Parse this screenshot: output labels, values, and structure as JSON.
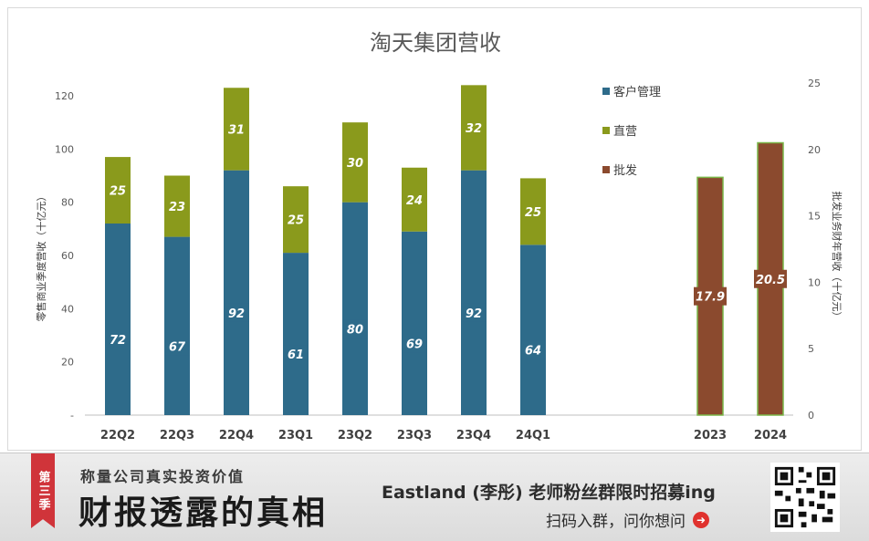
{
  "chart_data": {
    "type": "bar",
    "title": "淘天集团营收",
    "ylabel_left": "零售商业季度营收（十亿元）",
    "ylabel_right": "批发业务财年营收（十亿元）",
    "left_axis": {
      "range": [
        0,
        130
      ],
      "ticks": [
        "-",
        "20",
        "40",
        "60",
        "80",
        "100",
        "120"
      ]
    },
    "right_axis": {
      "range": [
        0,
        25
      ],
      "ticks": [
        "0",
        "5",
        "10",
        "15",
        "20",
        "25"
      ]
    },
    "quarterly": {
      "categories": [
        "22Q2",
        "22Q3",
        "22Q4",
        "23Q1",
        "23Q2",
        "23Q3",
        "23Q4",
        "24Q1"
      ],
      "series": [
        {
          "name": "客户管理",
          "color": "#2e6b8a",
          "values": [
            72,
            67,
            92,
            61,
            80,
            69,
            92,
            64
          ],
          "labels": [
            "72",
            "67",
            "92",
            "61",
            "80",
            "69",
            "92",
            "64"
          ]
        },
        {
          "name": "直营",
          "color": "#8a9a1c",
          "values": [
            25,
            23,
            31,
            25,
            30,
            24,
            32,
            25
          ],
          "labels": [
            "25",
            "23",
            "31",
            "25",
            "30",
            "24",
            "32",
            "25"
          ]
        }
      ]
    },
    "annual": {
      "categories": [
        "2023",
        "2024"
      ],
      "series": [
        {
          "name": "批发",
          "color": "#8b4a2e",
          "values": [
            17.9,
            20.5
          ],
          "labels": [
            "17.9",
            "20.5"
          ]
        }
      ]
    },
    "legend": [
      "客户管理",
      "直营",
      "批发"
    ],
    "legend_position": "top-right"
  },
  "banner": {
    "badge": "第三季",
    "sub_slogan": "称量公司真实投资价值",
    "main_slogan": "财报透露的真相",
    "recruit": "Eastland (李彤) 老师粉丝群限时招募ing",
    "scan": "扫码入群，问你想问"
  }
}
